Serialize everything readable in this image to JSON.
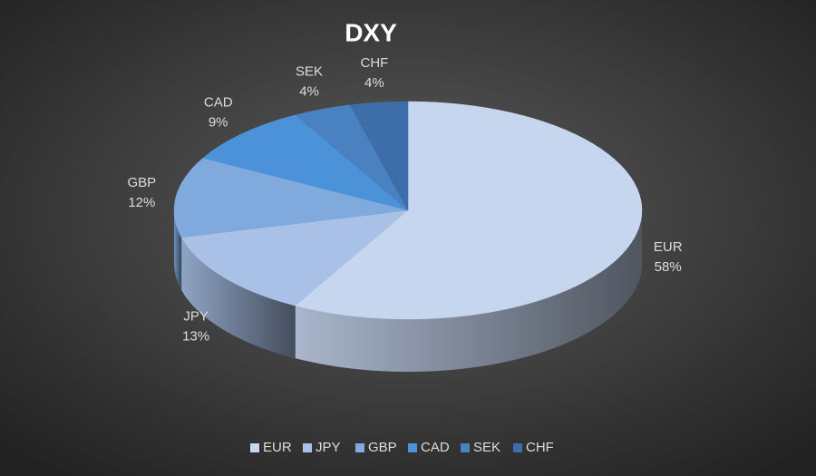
{
  "chart_data": {
    "type": "pie3d",
    "title": "DXY",
    "categories": [
      "EUR",
      "JPY",
      "GBP",
      "CAD",
      "SEK",
      "CHF"
    ],
    "values": [
      58,
      13,
      12,
      9,
      4,
      4
    ],
    "value_labels": [
      "58%",
      "13%",
      "12%",
      "9%",
      "4%",
      "4%"
    ],
    "colors": [
      "#c7d6ef",
      "#a9c1e7",
      "#80a9dd",
      "#4b92d8",
      "#4a81c0",
      "#3e6ea9"
    ],
    "legend": "bottom"
  }
}
